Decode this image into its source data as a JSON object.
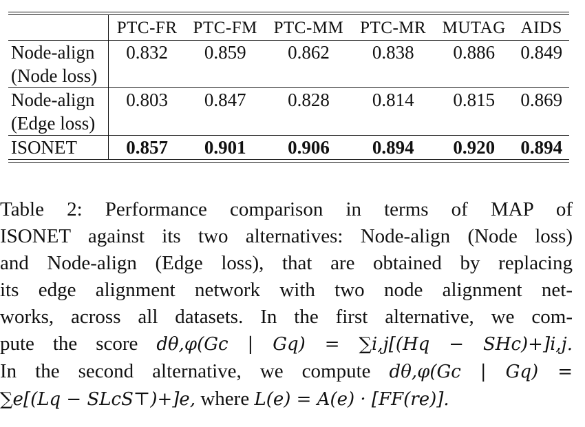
{
  "table": {
    "headers": [
      "PTC-FR",
      "PTC-FM",
      "PTC-MM",
      "PTC-MR",
      "MUTAG",
      "AIDS"
    ],
    "rows": [
      {
        "label_line1": "Node-align",
        "label_line2": "(Node loss)",
        "values": [
          "0.832",
          "0.859",
          "0.862",
          "0.838",
          "0.886",
          "0.849"
        ]
      },
      {
        "label_line1": "Node-align",
        "label_line2": "(Edge loss)",
        "values": [
          "0.803",
          "0.847",
          "0.828",
          "0.814",
          "0.815",
          "0.869"
        ]
      },
      {
        "label_sc": "ISONET",
        "values": [
          "0.857",
          "0.901",
          "0.906",
          "0.894",
          "0.920",
          "0.894"
        ]
      }
    ]
  },
  "caption": {
    "line1": "Table 2: Performance comparison in terms of MAP of",
    "line2": "ISONET against its two alternatives: Node-align (Node loss)",
    "line3": "and Node-align (Edge loss), that are obtained by replacing",
    "line4": "its edge alignment network with two node alignment net-",
    "line5": "works, across all datasets. In the first alternative, we com-",
    "line6_text": "pute the score",
    "line6_math": "dθ,φ(Gc | Gq) = ∑i,j[(Hq − SHc)+]i,j.",
    "line7_text": "In the second alternative, we compute",
    "line7_math": "dθ,φ(Gc | Gq) =",
    "line8_math": "∑e[(Lq − SLcS⊤)+]e,",
    "line8_text": "where",
    "line8_math2": "L(e) = A(e) · [FF(re)]."
  }
}
